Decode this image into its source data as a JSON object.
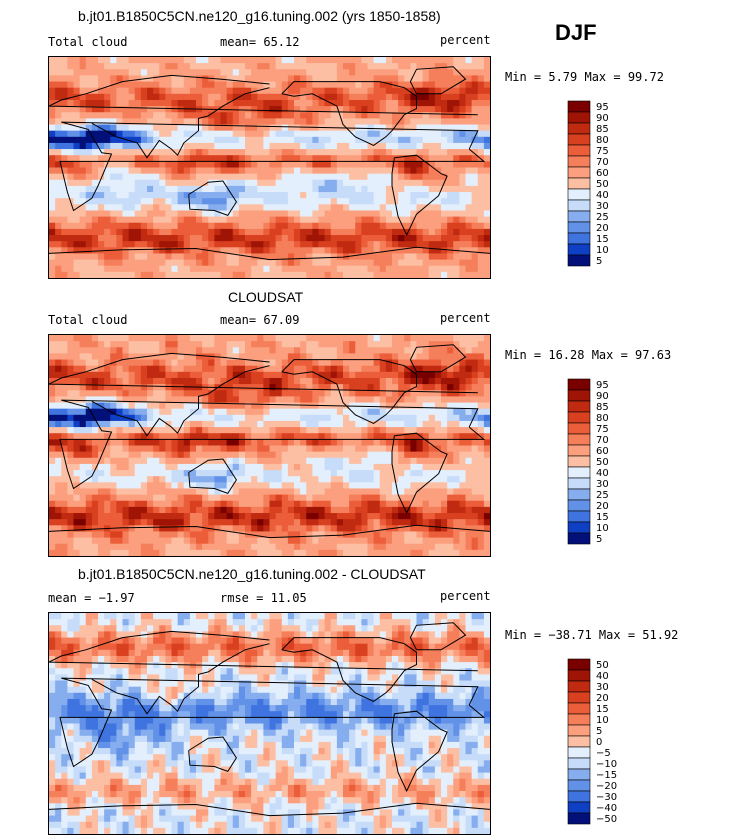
{
  "season": "DJF",
  "colors": {
    "pos": [
      "#fdeee6",
      "#fdd8c7",
      "#fcbfa3",
      "#fb9f7e",
      "#f57f5b",
      "#ec5d3a",
      "#d9401f",
      "#c02a10",
      "#a01405",
      "#7a0000"
    ],
    "neg": [
      "#e3effc",
      "#c6dcf9",
      "#a7c6f4",
      "#86adee",
      "#6291e8",
      "#3f74e0",
      "#2359d6",
      "#0f3fc4",
      "#0a25a8",
      "#03107a"
    ]
  },
  "chart_data": [
    {
      "type": "heatmap",
      "title": "b.jt01.B1850C5CN.ne120_g16.tuning.002 (yrs 1850-1858)",
      "left_label": "Total cloud",
      "center_label": "mean=  65.12",
      "right_label": "percent",
      "minmax_label": "Min =    5.79 Max =  99.72",
      "min": 5.79,
      "max": 99.72,
      "mean": 65.12,
      "cbar_labels": [
        "95",
        "90",
        "85",
        "80",
        "75",
        "70",
        "60",
        "50",
        "40",
        "30",
        "25",
        "20",
        "15",
        "10",
        "5"
      ],
      "map_field": "model"
    },
    {
      "type": "heatmap",
      "title": "CLOUDSAT",
      "left_label": "Total cloud",
      "center_label": "mean=  67.09",
      "right_label": "percent",
      "minmax_label": "Min =  16.28 Max =  97.63",
      "min": 16.28,
      "max": 97.63,
      "mean": 67.09,
      "cbar_labels": [
        "95",
        "90",
        "85",
        "80",
        "75",
        "70",
        "60",
        "50",
        "40",
        "30",
        "25",
        "20",
        "15",
        "10",
        "5"
      ],
      "map_field": "obs"
    },
    {
      "type": "heatmap",
      "title": "b.jt01.B1850C5CN.ne120_g16.tuning.002 - CLOUDSAT",
      "left_label": "mean =  −1.97",
      "center_label": "rmse =  11.05",
      "right_label": "percent",
      "minmax_label": "Min = −38.71 Max =  51.92",
      "min": -38.71,
      "max": 51.92,
      "mean": -1.97,
      "rmse": 11.05,
      "cbar_labels": [
        "50",
        "40",
        "30",
        "20",
        "15",
        "10",
        "5",
        "0",
        "−5",
        "−10",
        "−15",
        "−20",
        "−30",
        "−40",
        "−50"
      ],
      "map_field": "diff"
    }
  ]
}
